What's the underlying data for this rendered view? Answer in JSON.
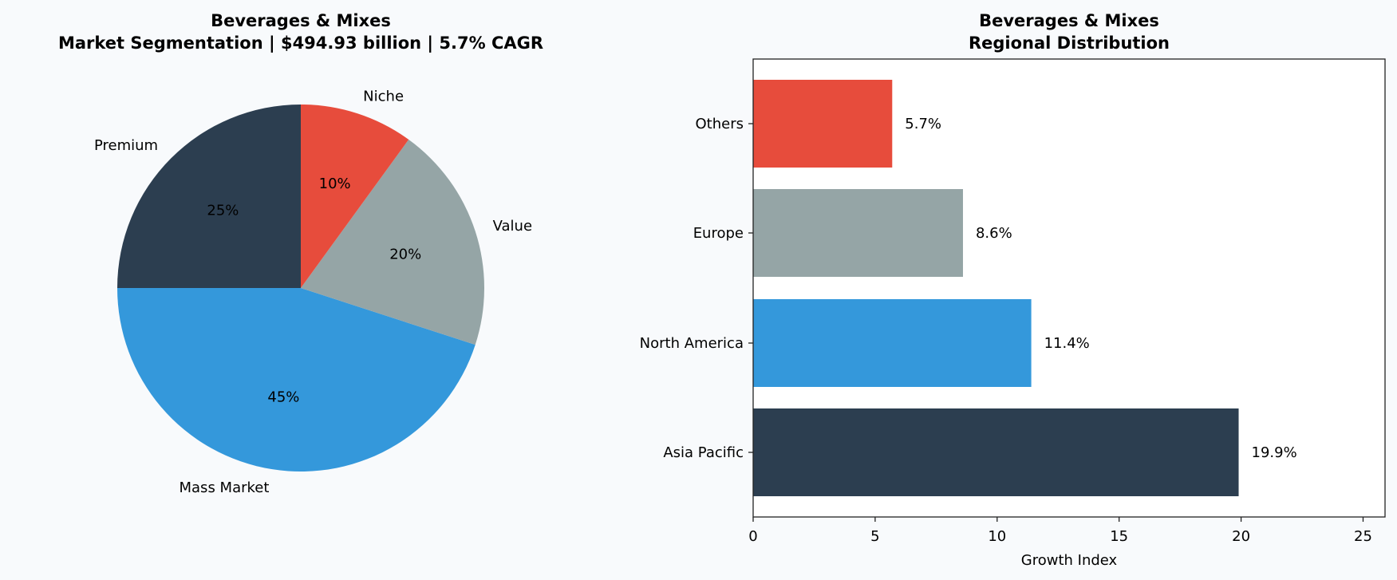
{
  "chart_data": [
    {
      "type": "pie",
      "title": "Beverages & Mixes",
      "subtitle": "Market Segmentation | $494.93 billion | 5.7% CAGR",
      "categories": [
        "Premium",
        "Mass Market",
        "Value",
        "Niche"
      ],
      "values": [
        25,
        45,
        20,
        10
      ],
      "value_labels": [
        "25%",
        "45%",
        "20%",
        "10%"
      ],
      "colors": [
        "#2c3e50",
        "#3498db",
        "#95a5a6",
        "#e74c3c"
      ],
      "start_angle": 90,
      "direction": "counterclockwise"
    },
    {
      "type": "bar",
      "orientation": "horizontal",
      "title": "Beverages & Mixes",
      "subtitle": "Regional Distribution",
      "categories": [
        "Asia Pacific",
        "North America",
        "Europe",
        "Others"
      ],
      "values": [
        19.9,
        11.4,
        8.6,
        5.7
      ],
      "value_labels": [
        "19.9%",
        "11.4%",
        "8.6%",
        "5.7%"
      ],
      "colors": [
        "#2c3e50",
        "#3498db",
        "#95a5a6",
        "#e74c3c"
      ],
      "xlabel": "Growth Index",
      "ylabel": "",
      "xlim": [
        0,
        25.9
      ],
      "xticks": [
        "0",
        "5",
        "10",
        "15",
        "20",
        "25"
      ],
      "grid": false
    }
  ]
}
